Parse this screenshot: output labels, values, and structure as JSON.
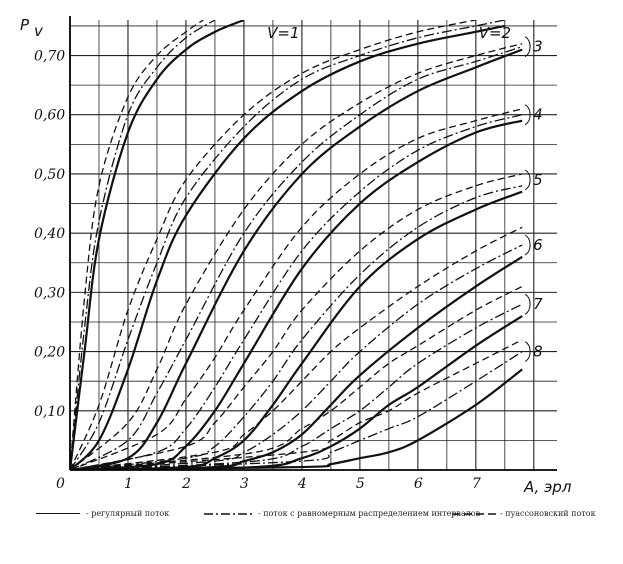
{
  "chart_data": {
    "type": "line",
    "title": "",
    "ylabel": "P",
    "ylabel_sub": "v",
    "xlabel": "A, эрл",
    "xlim": [
      0,
      8.4
    ],
    "ylim": [
      0,
      0.76
    ],
    "xticks": [
      "0",
      "1",
      "2",
      "3",
      "4",
      "5",
      "6",
      "7"
    ],
    "yticks": [
      "0,10",
      "0,20",
      "0,30",
      "0,40",
      "0,50",
      "0,60",
      "0,70"
    ],
    "grid": true,
    "curve_labels": [
      "V=1",
      "V=2",
      "3",
      "4",
      "5",
      "6",
      "7",
      "8"
    ],
    "series": [
      {
        "name": "V=1",
        "style": "solid",
        "points": [
          [
            0,
            0
          ],
          [
            0.25,
            0.2
          ],
          [
            0.5,
            0.39
          ],
          [
            1,
            0.57
          ],
          [
            1.5,
            0.66
          ],
          [
            2,
            0.71
          ],
          [
            2.5,
            0.74
          ],
          [
            3,
            0.76
          ]
        ]
      },
      {
        "name": "V=1",
        "style": "dashdot",
        "points": [
          [
            0,
            0
          ],
          [
            0.25,
            0.24
          ],
          [
            0.5,
            0.42
          ],
          [
            1,
            0.6
          ],
          [
            1.5,
            0.68
          ],
          [
            2,
            0.73
          ],
          [
            2.5,
            0.76
          ]
        ]
      },
      {
        "name": "V=1",
        "style": "dashed",
        "points": [
          [
            0,
            0
          ],
          [
            0.25,
            0.29
          ],
          [
            0.5,
            0.48
          ],
          [
            1,
            0.63
          ],
          [
            1.5,
            0.7
          ],
          [
            2,
            0.74
          ],
          [
            2.3,
            0.76
          ]
        ]
      },
      {
        "name": "V=2",
        "style": "solid",
        "points": [
          [
            0,
            0
          ],
          [
            0.5,
            0.05
          ],
          [
            1,
            0.17
          ],
          [
            1.5,
            0.32
          ],
          [
            2,
            0.43
          ],
          [
            3,
            0.56
          ],
          [
            4,
            0.64
          ],
          [
            5,
            0.69
          ],
          [
            6,
            0.72
          ],
          [
            7,
            0.74
          ],
          [
            7.5,
            0.75
          ]
        ]
      },
      {
        "name": "V=2",
        "style": "dashdot",
        "points": [
          [
            0,
            0
          ],
          [
            0.5,
            0.08
          ],
          [
            1,
            0.22
          ],
          [
            1.5,
            0.35
          ],
          [
            2,
            0.46
          ],
          [
            3,
            0.58
          ],
          [
            4,
            0.66
          ],
          [
            5,
            0.7
          ],
          [
            6,
            0.73
          ],
          [
            7,
            0.75
          ],
          [
            7.5,
            0.76
          ]
        ]
      },
      {
        "name": "V=2",
        "style": "dashed",
        "points": [
          [
            0,
            0
          ],
          [
            0.5,
            0.11
          ],
          [
            1,
            0.27
          ],
          [
            1.5,
            0.39
          ],
          [
            2,
            0.49
          ],
          [
            3,
            0.6
          ],
          [
            4,
            0.67
          ],
          [
            5,
            0.71
          ],
          [
            6,
            0.74
          ],
          [
            7,
            0.76
          ]
        ]
      },
      {
        "name": "3",
        "style": "solid",
        "points": [
          [
            0,
            0
          ],
          [
            1,
            0.02
          ],
          [
            1.5,
            0.08
          ],
          [
            2,
            0.18
          ],
          [
            3,
            0.37
          ],
          [
            4,
            0.5
          ],
          [
            5,
            0.58
          ],
          [
            6,
            0.64
          ],
          [
            7,
            0.68
          ],
          [
            7.8,
            0.71
          ]
        ]
      },
      {
        "name": "3",
        "style": "dashdot",
        "points": [
          [
            0,
            0
          ],
          [
            1,
            0.05
          ],
          [
            1.5,
            0.13
          ],
          [
            2,
            0.22
          ],
          [
            3,
            0.4
          ],
          [
            4,
            0.52
          ],
          [
            5,
            0.6
          ],
          [
            6,
            0.66
          ],
          [
            7,
            0.69
          ],
          [
            7.8,
            0.715
          ]
        ]
      },
      {
        "name": "3",
        "style": "dashed",
        "points": [
          [
            0,
            0
          ],
          [
            1,
            0.08
          ],
          [
            1.5,
            0.17
          ],
          [
            2,
            0.28
          ],
          [
            3,
            0.44
          ],
          [
            4,
            0.55
          ],
          [
            5,
            0.62
          ],
          [
            6,
            0.67
          ],
          [
            7,
            0.7
          ],
          [
            7.8,
            0.72
          ]
        ]
      },
      {
        "name": "4",
        "style": "solid",
        "points": [
          [
            0,
            0
          ],
          [
            1.5,
            0.01
          ],
          [
            2,
            0.04
          ],
          [
            2.5,
            0.1
          ],
          [
            3,
            0.18
          ],
          [
            4,
            0.34
          ],
          [
            5,
            0.45
          ],
          [
            6,
            0.52
          ],
          [
            7,
            0.57
          ],
          [
            7.8,
            0.59
          ]
        ]
      },
      {
        "name": "4",
        "style": "dashdot",
        "points": [
          [
            0,
            0
          ],
          [
            1.5,
            0.03
          ],
          [
            2,
            0.07
          ],
          [
            2.5,
            0.14
          ],
          [
            3,
            0.22
          ],
          [
            4,
            0.37
          ],
          [
            5,
            0.47
          ],
          [
            6,
            0.54
          ],
          [
            7,
            0.58
          ],
          [
            7.8,
            0.6
          ]
        ]
      },
      {
        "name": "4",
        "style": "dashed",
        "points": [
          [
            0,
            0
          ],
          [
            1.5,
            0.06
          ],
          [
            2,
            0.12
          ],
          [
            2.5,
            0.19
          ],
          [
            3,
            0.27
          ],
          [
            4,
            0.41
          ],
          [
            5,
            0.5
          ],
          [
            6,
            0.56
          ],
          [
            7,
            0.59
          ],
          [
            7.8,
            0.61
          ]
        ]
      },
      {
        "name": "5",
        "style": "solid",
        "points": [
          [
            0,
            0
          ],
          [
            2,
            0.005
          ],
          [
            2.5,
            0.02
          ],
          [
            3,
            0.05
          ],
          [
            3.5,
            0.11
          ],
          [
            4,
            0.18
          ],
          [
            5,
            0.31
          ],
          [
            6,
            0.39
          ],
          [
            7,
            0.44
          ],
          [
            7.8,
            0.47
          ]
        ]
      },
      {
        "name": "5",
        "style": "dashdot",
        "points": [
          [
            0,
            0
          ],
          [
            2,
            0.02
          ],
          [
            2.5,
            0.04
          ],
          [
            3,
            0.09
          ],
          [
            3.5,
            0.15
          ],
          [
            4,
            0.22
          ],
          [
            5,
            0.33
          ],
          [
            6,
            0.41
          ],
          [
            7,
            0.46
          ],
          [
            7.8,
            0.48
          ]
        ]
      },
      {
        "name": "5",
        "style": "dashed",
        "points": [
          [
            0,
            0
          ],
          [
            2,
            0.04
          ],
          [
            2.5,
            0.08
          ],
          [
            3,
            0.14
          ],
          [
            3.5,
            0.2
          ],
          [
            4,
            0.27
          ],
          [
            5,
            0.37
          ],
          [
            6,
            0.44
          ],
          [
            7,
            0.48
          ],
          [
            7.8,
            0.5
          ]
        ]
      },
      {
        "name": "6",
        "style": "solid",
        "points": [
          [
            0,
            0
          ],
          [
            2.5,
            0.005
          ],
          [
            3,
            0.015
          ],
          [
            3.5,
            0.03
          ],
          [
            4,
            0.06
          ],
          [
            4.5,
            0.11
          ],
          [
            5,
            0.16
          ],
          [
            6,
            0.24
          ],
          [
            7,
            0.31
          ],
          [
            7.8,
            0.36
          ]
        ]
      },
      {
        "name": "6",
        "style": "dashdot",
        "points": [
          [
            0,
            0
          ],
          [
            2.5,
            0.015
          ],
          [
            3,
            0.03
          ],
          [
            3.5,
            0.06
          ],
          [
            4,
            0.1
          ],
          [
            4.5,
            0.15
          ],
          [
            5,
            0.2
          ],
          [
            6,
            0.28
          ],
          [
            7,
            0.34
          ],
          [
            7.8,
            0.38
          ]
        ]
      },
      {
        "name": "6",
        "style": "dashed",
        "points": [
          [
            0,
            0
          ],
          [
            2.5,
            0.03
          ],
          [
            3,
            0.06
          ],
          [
            3.5,
            0.1
          ],
          [
            4,
            0.15
          ],
          [
            4.5,
            0.2
          ],
          [
            5,
            0.24
          ],
          [
            6,
            0.31
          ],
          [
            7,
            0.37
          ],
          [
            7.8,
            0.41
          ]
        ]
      },
      {
        "name": "7",
        "style": "solid",
        "points": [
          [
            0,
            0
          ],
          [
            3.2,
            0.005
          ],
          [
            4,
            0.02
          ],
          [
            4.5,
            0.04
          ],
          [
            5,
            0.07
          ],
          [
            5.5,
            0.11
          ],
          [
            6,
            0.14
          ],
          [
            7,
            0.21
          ],
          [
            7.8,
            0.26
          ]
        ]
      },
      {
        "name": "7",
        "style": "dashdot",
        "points": [
          [
            0,
            0
          ],
          [
            3.2,
            0.015
          ],
          [
            4,
            0.04
          ],
          [
            4.5,
            0.07
          ],
          [
            5,
            0.1
          ],
          [
            5.5,
            0.14
          ],
          [
            6,
            0.18
          ],
          [
            7,
            0.24
          ],
          [
            7.8,
            0.28
          ]
        ]
      },
      {
        "name": "7",
        "style": "dashed",
        "points": [
          [
            0,
            0
          ],
          [
            3.2,
            0.03
          ],
          [
            4,
            0.07
          ],
          [
            4.5,
            0.1
          ],
          [
            5,
            0.14
          ],
          [
            5.5,
            0.18
          ],
          [
            6,
            0.21
          ],
          [
            7,
            0.27
          ],
          [
            7.8,
            0.31
          ]
        ]
      },
      {
        "name": "8",
        "style": "solid",
        "points": [
          [
            0,
            0
          ],
          [
            4,
            0.005
          ],
          [
            4.5,
            0.01
          ],
          [
            5,
            0.02
          ],
          [
            5.5,
            0.03
          ],
          [
            6,
            0.05
          ],
          [
            7,
            0.11
          ],
          [
            7.8,
            0.17
          ]
        ]
      },
      {
        "name": "8",
        "style": "dashdot",
        "points": [
          [
            0,
            0
          ],
          [
            4,
            0.015
          ],
          [
            4.5,
            0.03
          ],
          [
            5,
            0.05
          ],
          [
            5.5,
            0.07
          ],
          [
            6,
            0.09
          ],
          [
            7,
            0.15
          ],
          [
            7.8,
            0.2
          ]
        ]
      },
      {
        "name": "8",
        "style": "dashed",
        "points": [
          [
            0,
            0
          ],
          [
            4,
            0.03
          ],
          [
            4.5,
            0.05
          ],
          [
            5,
            0.08
          ],
          [
            5.5,
            0.1
          ],
          [
            6,
            0.13
          ],
          [
            7,
            0.18
          ],
          [
            7.8,
            0.22
          ]
        ]
      }
    ],
    "legend": [
      {
        "style": "solid",
        "label": "- регулярный поток"
      },
      {
        "style": "dashdot",
        "label": "- поток с равномерным распределением интервалов"
      },
      {
        "style": "dashed",
        "label": "- пуассоновский поток"
      }
    ]
  }
}
